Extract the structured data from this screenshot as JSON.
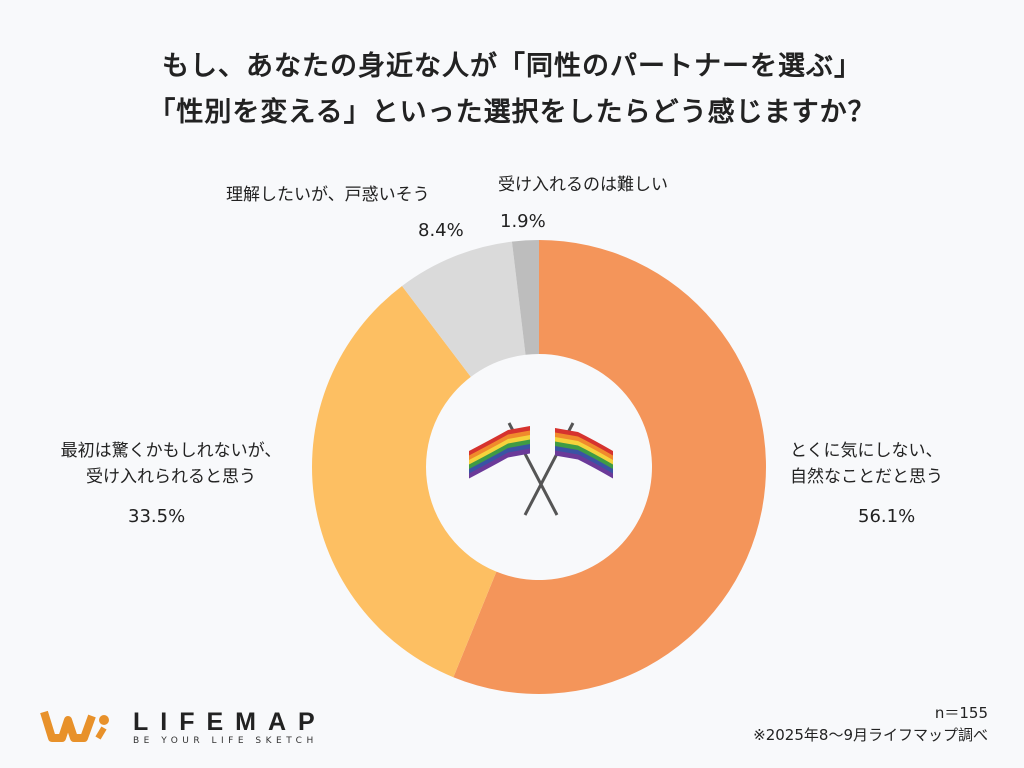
{
  "chart_data": {
    "type": "pie",
    "donut": true,
    "title_lines": [
      "もし、あなたの身近な人が「同性のパートナーを選ぶ」",
      "「性別を変える」といった選択をしたらどう感じますか？"
    ],
    "slices": [
      {
        "label_lines": [
          "とくに気にしない、",
          "自然なことだと思う"
        ],
        "value": 56.1,
        "display": "56.1%",
        "color": "#f4955a"
      },
      {
        "label_lines": [
          "最初は驚くかもしれないが、",
          "受け入れられると思う"
        ],
        "value": 33.5,
        "display": "33.5%",
        "color": "#fdbf62"
      },
      {
        "label_lines": [
          "理解したいが、戸惑いそう"
        ],
        "value": 8.4,
        "display": "8.4%",
        "color": "#dadada"
      },
      {
        "label_lines": [
          "受け入れるのは難しい"
        ],
        "value": 1.9,
        "display": "1.9%",
        "color": "#bdbdbd"
      }
    ],
    "center_icon": "rainbow-flags-icon",
    "sample": "n＝155",
    "source": "※2025年8〜9月ライフマップ調べ"
  },
  "brand": {
    "name": "LIFEMAP",
    "tagline": "BE YOUR LIFE SKETCH",
    "color": "#e8912a"
  }
}
